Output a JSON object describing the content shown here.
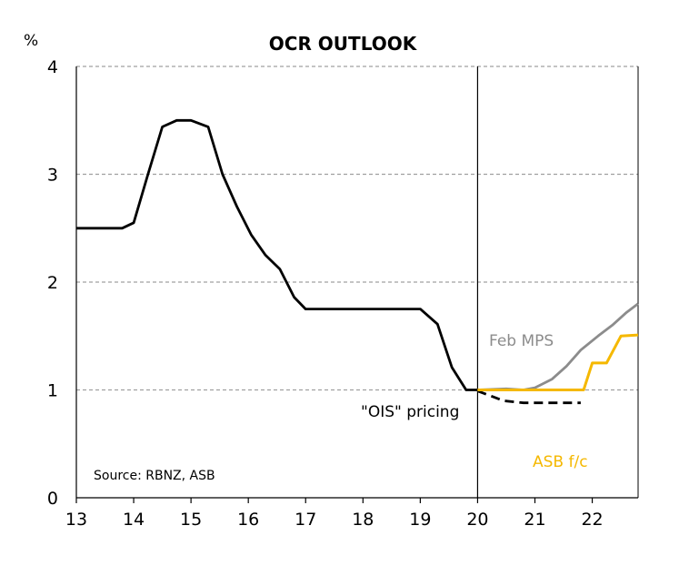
{
  "chart_data": {
    "type": "line",
    "title": "OCR OUTLOOK",
    "ylabel": "%",
    "xlabel": "",
    "xlim": [
      13,
      22.8
    ],
    "ylim": [
      0,
      4
    ],
    "x_ticks": [
      "13",
      "14",
      "15",
      "16",
      "17",
      "18",
      "19",
      "20",
      "21",
      "22"
    ],
    "y_ticks": [
      "0",
      "1",
      "2",
      "3",
      "4"
    ],
    "grid": "horizontal dashed",
    "vertical_marker_x": 20,
    "source": "Source: RBNZ, ASB",
    "colors": {
      "history": "#000000",
      "ois": "#000000",
      "feb_mps": "#8c8c8c",
      "asb": "#f5b800",
      "grid": "#a0a0a0"
    },
    "series": [
      {
        "key": "history",
        "values": [
          [
            13.0,
            2.5
          ],
          [
            13.8,
            2.5
          ],
          [
            14.0,
            2.55
          ],
          [
            14.25,
            3.0
          ],
          [
            14.5,
            3.44
          ],
          [
            14.75,
            3.5
          ],
          [
            15.0,
            3.5
          ],
          [
            15.3,
            3.44
          ],
          [
            15.55,
            3.0
          ],
          [
            15.8,
            2.7
          ],
          [
            16.05,
            2.44
          ],
          [
            16.3,
            2.25
          ],
          [
            16.55,
            2.12
          ],
          [
            16.8,
            1.86
          ],
          [
            17.0,
            1.75
          ],
          [
            19.0,
            1.75
          ],
          [
            19.3,
            1.61
          ],
          [
            19.55,
            1.21
          ],
          [
            19.8,
            1.0
          ],
          [
            20.0,
            1.0
          ]
        ]
      },
      {
        "key": "ois",
        "label": "\"OIS\" pricing",
        "dashed": true,
        "values": [
          [
            20.0,
            0.99
          ],
          [
            20.25,
            0.94
          ],
          [
            20.45,
            0.9
          ],
          [
            20.8,
            0.88
          ],
          [
            21.8,
            0.88
          ]
        ]
      },
      {
        "key": "feb_mps",
        "label": "Feb MPS",
        "values": [
          [
            20.0,
            1.0
          ],
          [
            20.5,
            1.01
          ],
          [
            20.8,
            1.0
          ],
          [
            21.0,
            1.02
          ],
          [
            21.3,
            1.1
          ],
          [
            21.55,
            1.22
          ],
          [
            21.8,
            1.37
          ],
          [
            22.1,
            1.5
          ],
          [
            22.35,
            1.6
          ],
          [
            22.6,
            1.72
          ],
          [
            22.8,
            1.8
          ]
        ]
      },
      {
        "key": "asb",
        "label": "ASB f/c",
        "values": [
          [
            20.0,
            1.0
          ],
          [
            20.5,
            1.0
          ],
          [
            21.45,
            1.0
          ],
          [
            21.75,
            1.0
          ],
          [
            21.85,
            1.0
          ],
          [
            22.0,
            1.25
          ],
          [
            22.25,
            1.25
          ],
          [
            22.5,
            1.5
          ],
          [
            22.8,
            1.51
          ]
        ]
      }
    ]
  }
}
